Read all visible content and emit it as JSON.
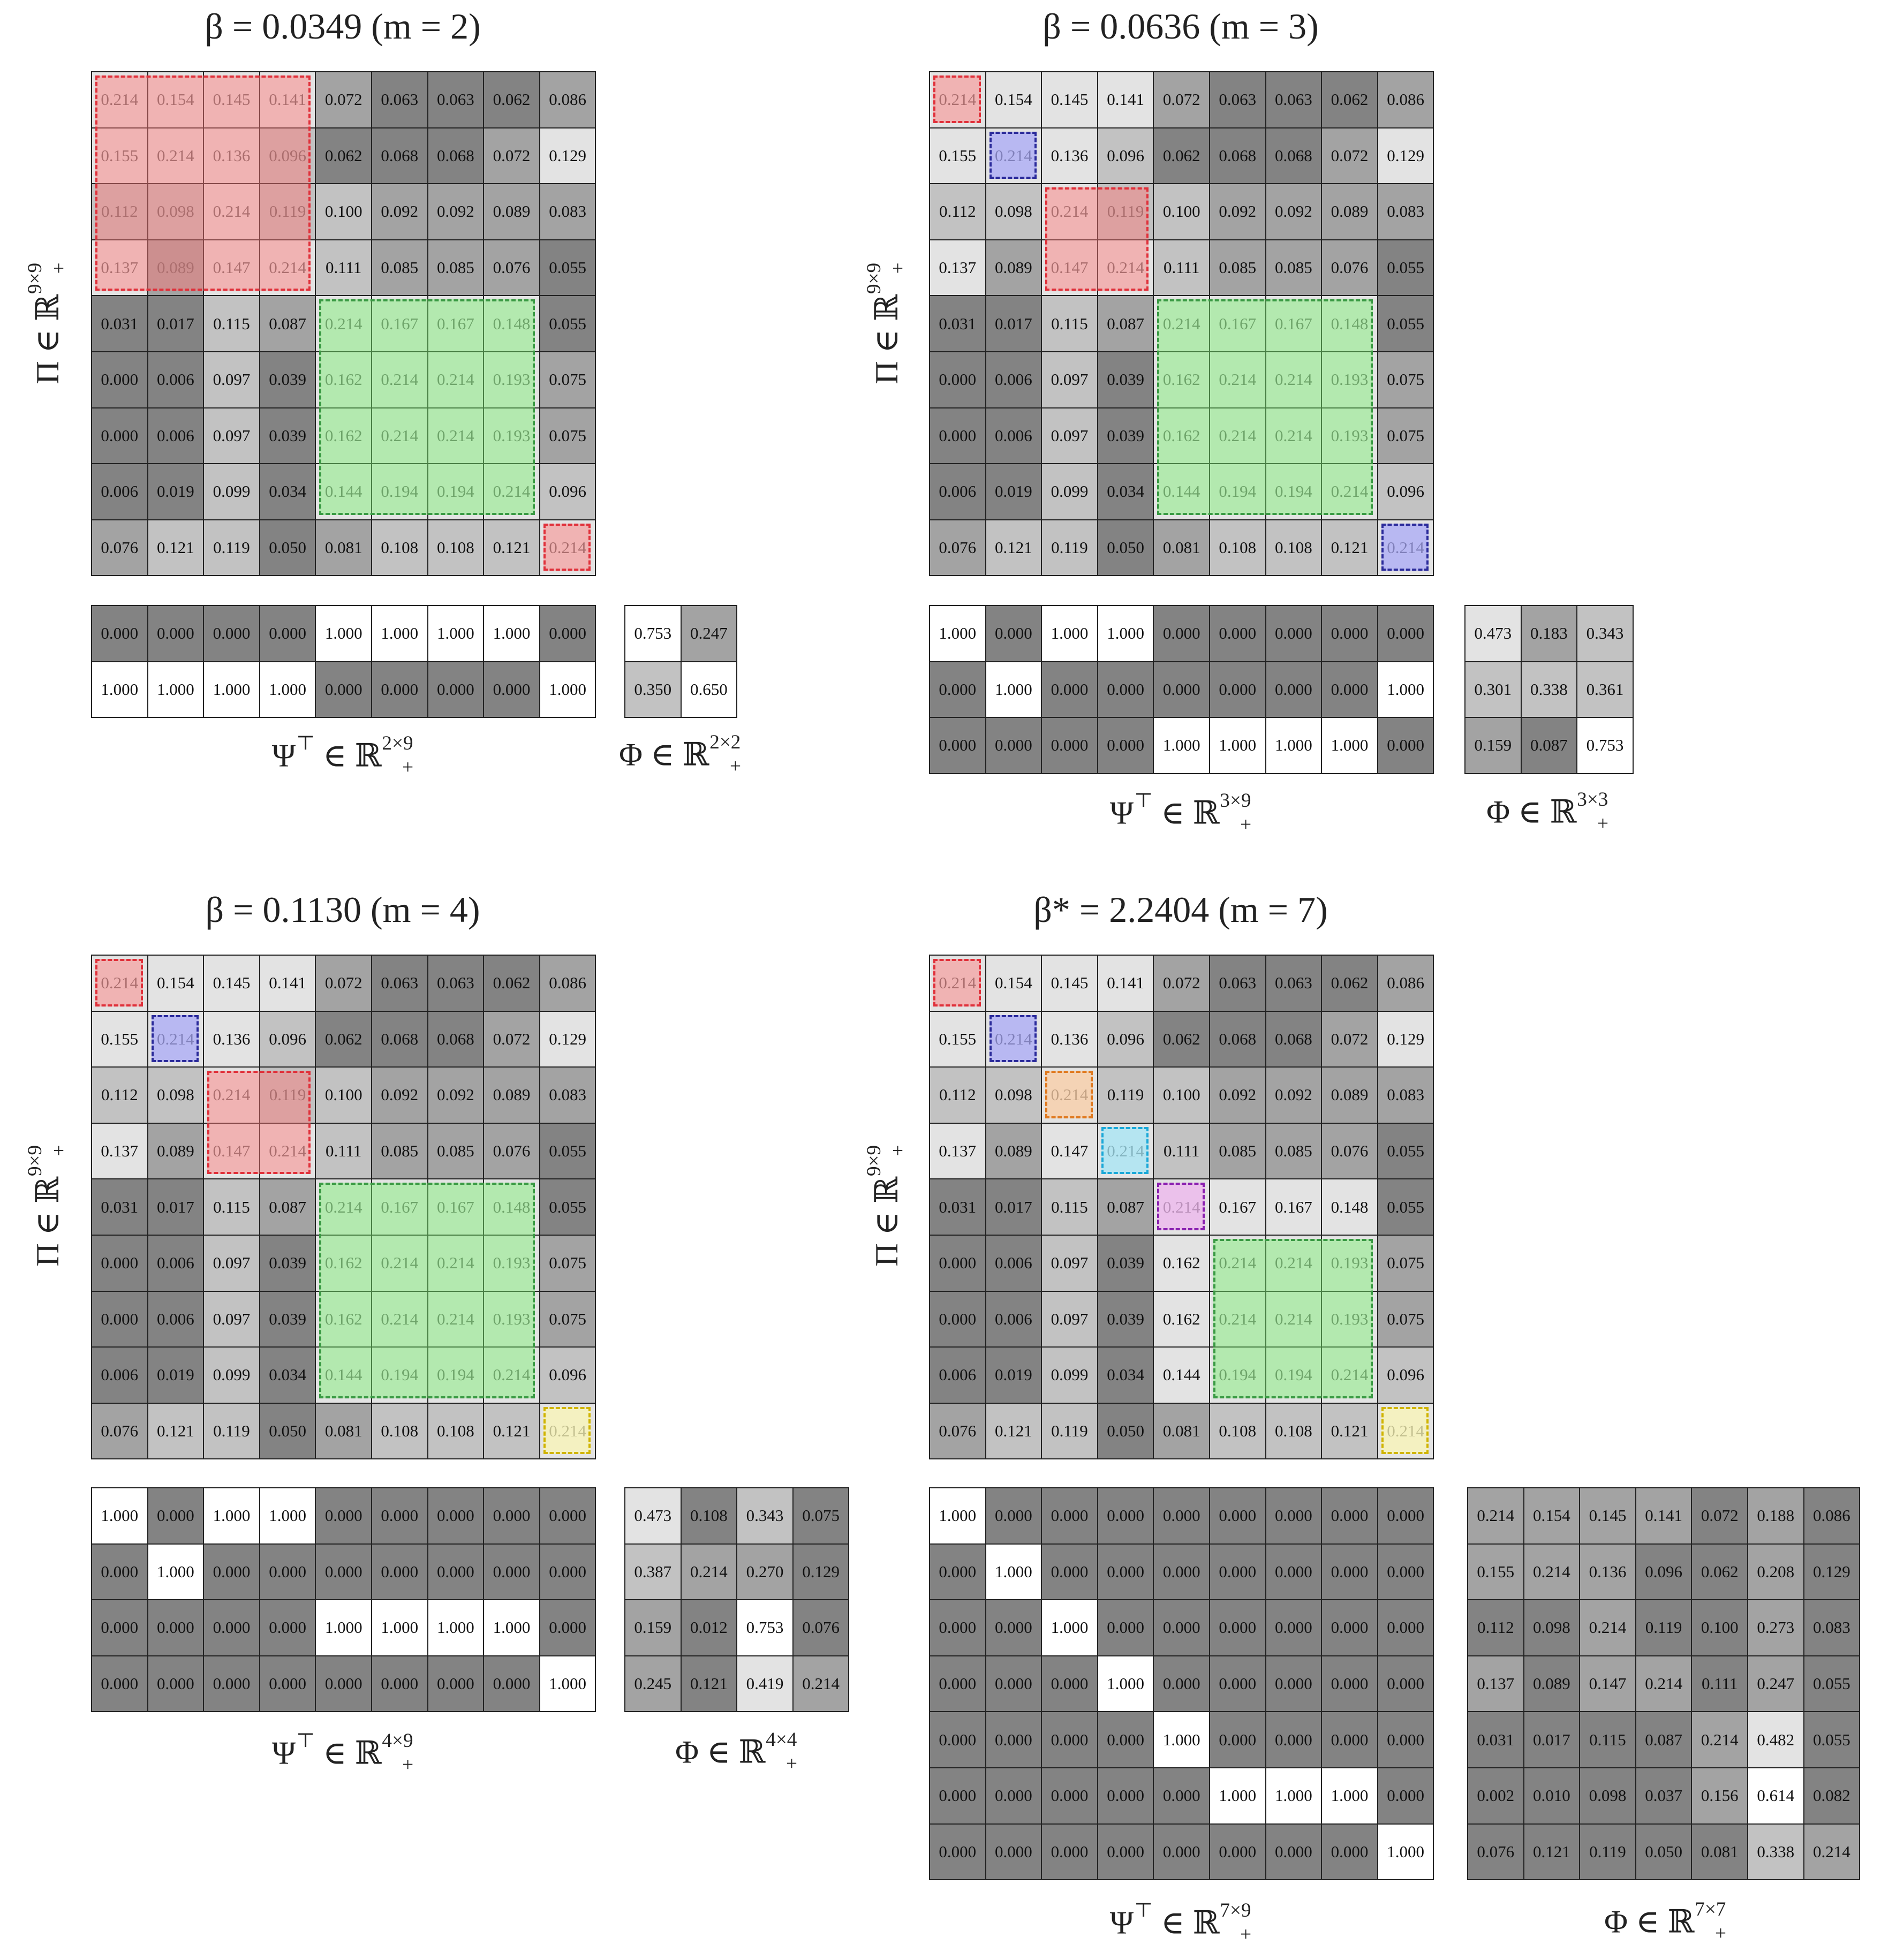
{
  "cell_colors": {
    "white": "#ffffff",
    "light": "#e3e3e3",
    "mid": "#c2c2c2",
    "dark": "#a3a3a3",
    "darkest": "#838383"
  },
  "highlight_colors": {
    "red": {
      "fill": "rgba(255,120,120,0.45)",
      "border": "#e0303a"
    },
    "green": {
      "fill": "rgba(120,240,110,0.45)",
      "border": "#3a9a44"
    },
    "blue": {
      "fill": "rgba(150,150,255,0.55)",
      "border": "#2a2a9a"
    },
    "orange": {
      "fill": "rgba(255,200,150,0.6)",
      "border": "#e07a20"
    },
    "cyan": {
      "fill": "rgba(150,230,250,0.6)",
      "border": "#1aa8d8"
    },
    "purple": {
      "fill": "rgba(240,170,240,0.6)",
      "border": "#8a20b0"
    },
    "yellow": {
      "fill": "rgba(255,250,170,0.6)",
      "border": "#d0b400"
    }
  },
  "panels": [
    {
      "id": "m2",
      "title": "β = 0.0349 (m = 2)",
      "pi_label": "Π ∈ ℝ",
      "pi_sup": "9×9",
      "pi_sub": "+",
      "pi": [
        [
          "0.214",
          "0.154",
          "0.145",
          "0.141",
          "0.072",
          "0.063",
          "0.063",
          "0.062",
          "0.086"
        ],
        [
          "0.155",
          "0.214",
          "0.136",
          "0.096",
          "0.062",
          "0.068",
          "0.068",
          "0.072",
          "0.129"
        ],
        [
          "0.112",
          "0.098",
          "0.214",
          "0.119",
          "0.100",
          "0.092",
          "0.092",
          "0.089",
          "0.083"
        ],
        [
          "0.137",
          "0.089",
          "0.147",
          "0.214",
          "0.111",
          "0.085",
          "0.085",
          "0.076",
          "0.055"
        ],
        [
          "0.031",
          "0.017",
          "0.115",
          "0.087",
          "0.214",
          "0.167",
          "0.167",
          "0.148",
          "0.055"
        ],
        [
          "0.000",
          "0.006",
          "0.097",
          "0.039",
          "0.162",
          "0.214",
          "0.214",
          "0.193",
          "0.075"
        ],
        [
          "0.000",
          "0.006",
          "0.097",
          "0.039",
          "0.162",
          "0.214",
          "0.214",
          "0.193",
          "0.075"
        ],
        [
          "0.006",
          "0.019",
          "0.099",
          "0.034",
          "0.144",
          "0.194",
          "0.194",
          "0.214",
          "0.096"
        ],
        [
          "0.076",
          "0.121",
          "0.119",
          "0.050",
          "0.081",
          "0.108",
          "0.108",
          "0.121",
          "0.214"
        ]
      ],
      "pi_highlights": [
        {
          "r0": 0,
          "c0": 0,
          "r1": 3,
          "c1": 3,
          "color": "red"
        },
        {
          "r0": 4,
          "c0": 4,
          "r1": 7,
          "c1": 7,
          "color": "green"
        },
        {
          "r0": 8,
          "c0": 8,
          "r1": 8,
          "c1": 8,
          "color": "red"
        }
      ],
      "psi_label": "Ψ",
      "psi_sup_t": "⊤",
      "psi_sup": "2×9",
      "psi_sub": "+",
      "psi": [
        [
          "0.000",
          "0.000",
          "0.000",
          "0.000",
          "1.000",
          "1.000",
          "1.000",
          "1.000",
          "0.000"
        ],
        [
          "1.000",
          "1.000",
          "1.000",
          "1.000",
          "0.000",
          "0.000",
          "0.000",
          "0.000",
          "1.000"
        ]
      ],
      "phi_label": "Φ",
      "phi_sup": "2×2",
      "phi_sub": "+",
      "phi": [
        [
          "0.753",
          "0.247"
        ],
        [
          "0.350",
          "0.650"
        ]
      ]
    },
    {
      "id": "m3",
      "title": "β = 0.0636 (m = 3)",
      "pi_label": "Π ∈ ℝ",
      "pi_sup": "9×9",
      "pi_sub": "+",
      "pi": [
        [
          "0.214",
          "0.154",
          "0.145",
          "0.141",
          "0.072",
          "0.063",
          "0.063",
          "0.062",
          "0.086"
        ],
        [
          "0.155",
          "0.214",
          "0.136",
          "0.096",
          "0.062",
          "0.068",
          "0.068",
          "0.072",
          "0.129"
        ],
        [
          "0.112",
          "0.098",
          "0.214",
          "0.119",
          "0.100",
          "0.092",
          "0.092",
          "0.089",
          "0.083"
        ],
        [
          "0.137",
          "0.089",
          "0.147",
          "0.214",
          "0.111",
          "0.085",
          "0.085",
          "0.076",
          "0.055"
        ],
        [
          "0.031",
          "0.017",
          "0.115",
          "0.087",
          "0.214",
          "0.167",
          "0.167",
          "0.148",
          "0.055"
        ],
        [
          "0.000",
          "0.006",
          "0.097",
          "0.039",
          "0.162",
          "0.214",
          "0.214",
          "0.193",
          "0.075"
        ],
        [
          "0.000",
          "0.006",
          "0.097",
          "0.039",
          "0.162",
          "0.214",
          "0.214",
          "0.193",
          "0.075"
        ],
        [
          "0.006",
          "0.019",
          "0.099",
          "0.034",
          "0.144",
          "0.194",
          "0.194",
          "0.214",
          "0.096"
        ],
        [
          "0.076",
          "0.121",
          "0.119",
          "0.050",
          "0.081",
          "0.108",
          "0.108",
          "0.121",
          "0.214"
        ]
      ],
      "pi_highlights": [
        {
          "r0": 0,
          "c0": 0,
          "r1": 0,
          "c1": 0,
          "color": "red"
        },
        {
          "r0": 1,
          "c0": 1,
          "r1": 1,
          "c1": 1,
          "color": "blue"
        },
        {
          "r0": 2,
          "c0": 2,
          "r1": 3,
          "c1": 3,
          "color": "red"
        },
        {
          "r0": 4,
          "c0": 4,
          "r1": 7,
          "c1": 7,
          "color": "green"
        },
        {
          "r0": 8,
          "c0": 8,
          "r1": 8,
          "c1": 8,
          "color": "blue"
        }
      ],
      "psi_label": "Ψ",
      "psi_sup_t": "⊤",
      "psi_sup": "3×9",
      "psi_sub": "+",
      "psi": [
        [
          "1.000",
          "0.000",
          "1.000",
          "1.000",
          "0.000",
          "0.000",
          "0.000",
          "0.000",
          "0.000"
        ],
        [
          "0.000",
          "1.000",
          "0.000",
          "0.000",
          "0.000",
          "0.000",
          "0.000",
          "0.000",
          "1.000"
        ],
        [
          "0.000",
          "0.000",
          "0.000",
          "0.000",
          "1.000",
          "1.000",
          "1.000",
          "1.000",
          "0.000"
        ]
      ],
      "phi_label": "Φ",
      "phi_sup": "3×3",
      "phi_sub": "+",
      "phi": [
        [
          "0.473",
          "0.183",
          "0.343"
        ],
        [
          "0.301",
          "0.338",
          "0.361"
        ],
        [
          "0.159",
          "0.087",
          "0.753"
        ]
      ]
    },
    {
      "id": "m4",
      "title": "β = 0.1130 (m = 4)",
      "pi_label": "Π ∈ ℝ",
      "pi_sup": "9×9",
      "pi_sub": "+",
      "pi": [
        [
          "0.214",
          "0.154",
          "0.145",
          "0.141",
          "0.072",
          "0.063",
          "0.063",
          "0.062",
          "0.086"
        ],
        [
          "0.155",
          "0.214",
          "0.136",
          "0.096",
          "0.062",
          "0.068",
          "0.068",
          "0.072",
          "0.129"
        ],
        [
          "0.112",
          "0.098",
          "0.214",
          "0.119",
          "0.100",
          "0.092",
          "0.092",
          "0.089",
          "0.083"
        ],
        [
          "0.137",
          "0.089",
          "0.147",
          "0.214",
          "0.111",
          "0.085",
          "0.085",
          "0.076",
          "0.055"
        ],
        [
          "0.031",
          "0.017",
          "0.115",
          "0.087",
          "0.214",
          "0.167",
          "0.167",
          "0.148",
          "0.055"
        ],
        [
          "0.000",
          "0.006",
          "0.097",
          "0.039",
          "0.162",
          "0.214",
          "0.214",
          "0.193",
          "0.075"
        ],
        [
          "0.000",
          "0.006",
          "0.097",
          "0.039",
          "0.162",
          "0.214",
          "0.214",
          "0.193",
          "0.075"
        ],
        [
          "0.006",
          "0.019",
          "0.099",
          "0.034",
          "0.144",
          "0.194",
          "0.194",
          "0.214",
          "0.096"
        ],
        [
          "0.076",
          "0.121",
          "0.119",
          "0.050",
          "0.081",
          "0.108",
          "0.108",
          "0.121",
          "0.214"
        ]
      ],
      "pi_highlights": [
        {
          "r0": 0,
          "c0": 0,
          "r1": 0,
          "c1": 0,
          "color": "red"
        },
        {
          "r0": 1,
          "c0": 1,
          "r1": 1,
          "c1": 1,
          "color": "blue"
        },
        {
          "r0": 2,
          "c0": 2,
          "r1": 3,
          "c1": 3,
          "color": "red"
        },
        {
          "r0": 4,
          "c0": 4,
          "r1": 7,
          "c1": 7,
          "color": "green"
        },
        {
          "r0": 8,
          "c0": 8,
          "r1": 8,
          "c1": 8,
          "color": "yellow"
        }
      ],
      "psi_label": "Ψ",
      "psi_sup_t": "⊤",
      "psi_sup": "4×9",
      "psi_sub": "+",
      "psi": [
        [
          "1.000",
          "0.000",
          "1.000",
          "1.000",
          "0.000",
          "0.000",
          "0.000",
          "0.000",
          "0.000"
        ],
        [
          "0.000",
          "1.000",
          "0.000",
          "0.000",
          "0.000",
          "0.000",
          "0.000",
          "0.000",
          "0.000"
        ],
        [
          "0.000",
          "0.000",
          "0.000",
          "0.000",
          "1.000",
          "1.000",
          "1.000",
          "1.000",
          "0.000"
        ],
        [
          "0.000",
          "0.000",
          "0.000",
          "0.000",
          "0.000",
          "0.000",
          "0.000",
          "0.000",
          "1.000"
        ]
      ],
      "phi_label": "Φ",
      "phi_sup": "4×4",
      "phi_sub": "+",
      "phi": [
        [
          "0.473",
          "0.108",
          "0.343",
          "0.075"
        ],
        [
          "0.387",
          "0.214",
          "0.270",
          "0.129"
        ],
        [
          "0.159",
          "0.012",
          "0.753",
          "0.076"
        ],
        [
          "0.245",
          "0.121",
          "0.419",
          "0.214"
        ]
      ]
    },
    {
      "id": "m7",
      "title": "β* = 2.2404 (m = 7)",
      "pi_label": "Π ∈ ℝ",
      "pi_sup": "9×9",
      "pi_sub": "+",
      "pi": [
        [
          "0.214",
          "0.154",
          "0.145",
          "0.141",
          "0.072",
          "0.063",
          "0.063",
          "0.062",
          "0.086"
        ],
        [
          "0.155",
          "0.214",
          "0.136",
          "0.096",
          "0.062",
          "0.068",
          "0.068",
          "0.072",
          "0.129"
        ],
        [
          "0.112",
          "0.098",
          "0.214",
          "0.119",
          "0.100",
          "0.092",
          "0.092",
          "0.089",
          "0.083"
        ],
        [
          "0.137",
          "0.089",
          "0.147",
          "0.214",
          "0.111",
          "0.085",
          "0.085",
          "0.076",
          "0.055"
        ],
        [
          "0.031",
          "0.017",
          "0.115",
          "0.087",
          "0.214",
          "0.167",
          "0.167",
          "0.148",
          "0.055"
        ],
        [
          "0.000",
          "0.006",
          "0.097",
          "0.039",
          "0.162",
          "0.214",
          "0.214",
          "0.193",
          "0.075"
        ],
        [
          "0.000",
          "0.006",
          "0.097",
          "0.039",
          "0.162",
          "0.214",
          "0.214",
          "0.193",
          "0.075"
        ],
        [
          "0.006",
          "0.019",
          "0.099",
          "0.034",
          "0.144",
          "0.194",
          "0.194",
          "0.214",
          "0.096"
        ],
        [
          "0.076",
          "0.121",
          "0.119",
          "0.050",
          "0.081",
          "0.108",
          "0.108",
          "0.121",
          "0.214"
        ]
      ],
      "pi_highlights": [
        {
          "r0": 0,
          "c0": 0,
          "r1": 0,
          "c1": 0,
          "color": "red"
        },
        {
          "r0": 1,
          "c0": 1,
          "r1": 1,
          "c1": 1,
          "color": "blue"
        },
        {
          "r0": 2,
          "c0": 2,
          "r1": 2,
          "c1": 2,
          "color": "orange"
        },
        {
          "r0": 3,
          "c0": 3,
          "r1": 3,
          "c1": 3,
          "color": "cyan"
        },
        {
          "r0": 4,
          "c0": 4,
          "r1": 4,
          "c1": 4,
          "color": "purple"
        },
        {
          "r0": 5,
          "c0": 5,
          "r1": 7,
          "c1": 7,
          "color": "green"
        },
        {
          "r0": 8,
          "c0": 8,
          "r1": 8,
          "c1": 8,
          "color": "yellow"
        }
      ],
      "psi_label": "Ψ",
      "psi_sup_t": "⊤",
      "psi_sup": "7×9",
      "psi_sub": "+",
      "psi": [
        [
          "1.000",
          "0.000",
          "0.000",
          "0.000",
          "0.000",
          "0.000",
          "0.000",
          "0.000",
          "0.000"
        ],
        [
          "0.000",
          "1.000",
          "0.000",
          "0.000",
          "0.000",
          "0.000",
          "0.000",
          "0.000",
          "0.000"
        ],
        [
          "0.000",
          "0.000",
          "1.000",
          "0.000",
          "0.000",
          "0.000",
          "0.000",
          "0.000",
          "0.000"
        ],
        [
          "0.000",
          "0.000",
          "0.000",
          "1.000",
          "0.000",
          "0.000",
          "0.000",
          "0.000",
          "0.000"
        ],
        [
          "0.000",
          "0.000",
          "0.000",
          "0.000",
          "1.000",
          "0.000",
          "0.000",
          "0.000",
          "0.000"
        ],
        [
          "0.000",
          "0.000",
          "0.000",
          "0.000",
          "0.000",
          "1.000",
          "1.000",
          "1.000",
          "0.000"
        ],
        [
          "0.000",
          "0.000",
          "0.000",
          "0.000",
          "0.000",
          "0.000",
          "0.000",
          "0.000",
          "1.000"
        ]
      ],
      "phi_label": "Φ",
      "phi_sup": "7×7",
      "phi_sub": "+",
      "phi": [
        [
          "0.214",
          "0.154",
          "0.145",
          "0.141",
          "0.072",
          "0.188",
          "0.086"
        ],
        [
          "0.155",
          "0.214",
          "0.136",
          "0.096",
          "0.062",
          "0.208",
          "0.129"
        ],
        [
          "0.112",
          "0.098",
          "0.214",
          "0.119",
          "0.100",
          "0.273",
          "0.083"
        ],
        [
          "0.137",
          "0.089",
          "0.147",
          "0.214",
          "0.111",
          "0.247",
          "0.055"
        ],
        [
          "0.031",
          "0.017",
          "0.115",
          "0.087",
          "0.214",
          "0.482",
          "0.055"
        ],
        [
          "0.002",
          "0.010",
          "0.098",
          "0.037",
          "0.156",
          "0.614",
          "0.082"
        ],
        [
          "0.076",
          "0.121",
          "0.119",
          "0.050",
          "0.081",
          "0.338",
          "0.214"
        ]
      ]
    }
  ]
}
